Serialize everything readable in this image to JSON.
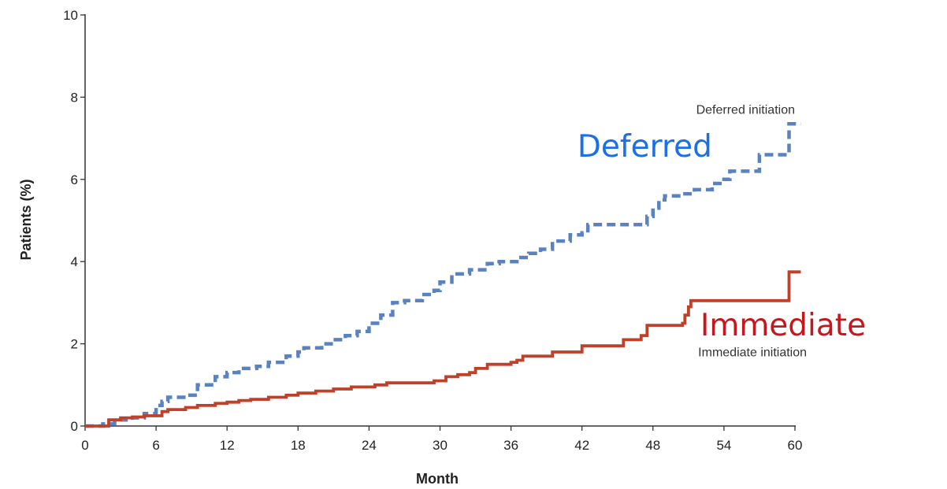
{
  "chart_data": {
    "type": "line",
    "step": true,
    "xlabel": "Month",
    "ylabel": "Patients (%)",
    "xlim": [
      0,
      60
    ],
    "ylim": [
      0,
      10
    ],
    "x_ticks": [
      "0",
      "6",
      "12",
      "18",
      "24",
      "30",
      "36",
      "42",
      "48",
      "54",
      "60"
    ],
    "y_ticks": [
      "0",
      "2",
      "4",
      "6",
      "8",
      "10"
    ],
    "grid": false,
    "series": [
      {
        "name": "Deferred initiation",
        "color": "#5a82c0",
        "line_style": "dashed",
        "points": [
          [
            0,
            0
          ],
          [
            1.5,
            0.05
          ],
          [
            2.5,
            0.1
          ],
          [
            3,
            0.15
          ],
          [
            4,
            0.2
          ],
          [
            5,
            0.3
          ],
          [
            6,
            0.5
          ],
          [
            6.5,
            0.6
          ],
          [
            7,
            0.7
          ],
          [
            8.5,
            0.75
          ],
          [
            9.5,
            1.0
          ],
          [
            11,
            1.2
          ],
          [
            12,
            1.3
          ],
          [
            13,
            1.4
          ],
          [
            14.5,
            1.45
          ],
          [
            15.5,
            1.55
          ],
          [
            17,
            1.7
          ],
          [
            18,
            1.8
          ],
          [
            18.5,
            1.9
          ],
          [
            20,
            2.0
          ],
          [
            21,
            2.1
          ],
          [
            22,
            2.2
          ],
          [
            23,
            2.3
          ],
          [
            24,
            2.5
          ],
          [
            25,
            2.7
          ],
          [
            26,
            3.0
          ],
          [
            27,
            3.05
          ],
          [
            28.5,
            3.2
          ],
          [
            29.5,
            3.3
          ],
          [
            30,
            3.5
          ],
          [
            31,
            3.7
          ],
          [
            32.5,
            3.8
          ],
          [
            34,
            3.95
          ],
          [
            35,
            4.0
          ],
          [
            36.5,
            4.1
          ],
          [
            37.5,
            4.2
          ],
          [
            38.5,
            4.3
          ],
          [
            39.5,
            4.5
          ],
          [
            41,
            4.65
          ],
          [
            42,
            4.7
          ],
          [
            42.5,
            4.9
          ],
          [
            47,
            4.9
          ],
          [
            47.5,
            5.1
          ],
          [
            48,
            5.3
          ],
          [
            48.5,
            5.5
          ],
          [
            49,
            5.6
          ],
          [
            50.5,
            5.65
          ],
          [
            51.5,
            5.75
          ],
          [
            53,
            5.9
          ],
          [
            54,
            6.0
          ],
          [
            54.5,
            6.2
          ],
          [
            56.5,
            6.2
          ],
          [
            57,
            6.6
          ],
          [
            59.3,
            6.6
          ],
          [
            59.5,
            7.35
          ],
          [
            60.5,
            7.35
          ]
        ]
      },
      {
        "name": "Immediate initiation",
        "color": "#c0402a",
        "line_style": "solid",
        "points": [
          [
            0,
            0
          ],
          [
            2,
            0.15
          ],
          [
            3,
            0.2
          ],
          [
            4,
            0.22
          ],
          [
            5,
            0.25
          ],
          [
            6.5,
            0.35
          ],
          [
            7,
            0.4
          ],
          [
            8.5,
            0.45
          ],
          [
            9.5,
            0.5
          ],
          [
            11,
            0.55
          ],
          [
            12,
            0.58
          ],
          [
            13,
            0.62
          ],
          [
            14,
            0.65
          ],
          [
            15.5,
            0.7
          ],
          [
            17,
            0.75
          ],
          [
            18,
            0.8
          ],
          [
            19.5,
            0.85
          ],
          [
            21,
            0.9
          ],
          [
            22.5,
            0.95
          ],
          [
            24.5,
            1.0
          ],
          [
            25.5,
            1.05
          ],
          [
            29.5,
            1.1
          ],
          [
            30.5,
            1.2
          ],
          [
            31.5,
            1.25
          ],
          [
            32.5,
            1.3
          ],
          [
            33,
            1.4
          ],
          [
            34,
            1.5
          ],
          [
            36,
            1.55
          ],
          [
            36.5,
            1.6
          ],
          [
            37,
            1.7
          ],
          [
            39.5,
            1.8
          ],
          [
            42,
            1.95
          ],
          [
            45.5,
            2.1
          ],
          [
            47,
            2.2
          ],
          [
            47.5,
            2.45
          ],
          [
            50.5,
            2.5
          ],
          [
            50.7,
            2.7
          ],
          [
            51,
            2.9
          ],
          [
            51.2,
            3.05
          ],
          [
            59.2,
            3.05
          ],
          [
            59.5,
            3.75
          ],
          [
            60.5,
            3.75
          ]
        ]
      }
    ],
    "annotations": [
      {
        "text": "Deferred initiation",
        "x": 60,
        "y": 7.6,
        "anchor": "end",
        "style": "small",
        "color": "#333333"
      },
      {
        "text": "Immediate initiation",
        "x": 61,
        "y": 1.7,
        "anchor": "end",
        "style": "small",
        "color": "#333333"
      },
      {
        "text": "Deferred",
        "x": 53,
        "y": 6.55,
        "anchor": "end",
        "style": "big",
        "color": "#1c6fe6"
      },
      {
        "text": "Immediate",
        "x": 66,
        "y": 2.2,
        "anchor": "end",
        "style": "big",
        "color": "#c8161d"
      }
    ]
  }
}
